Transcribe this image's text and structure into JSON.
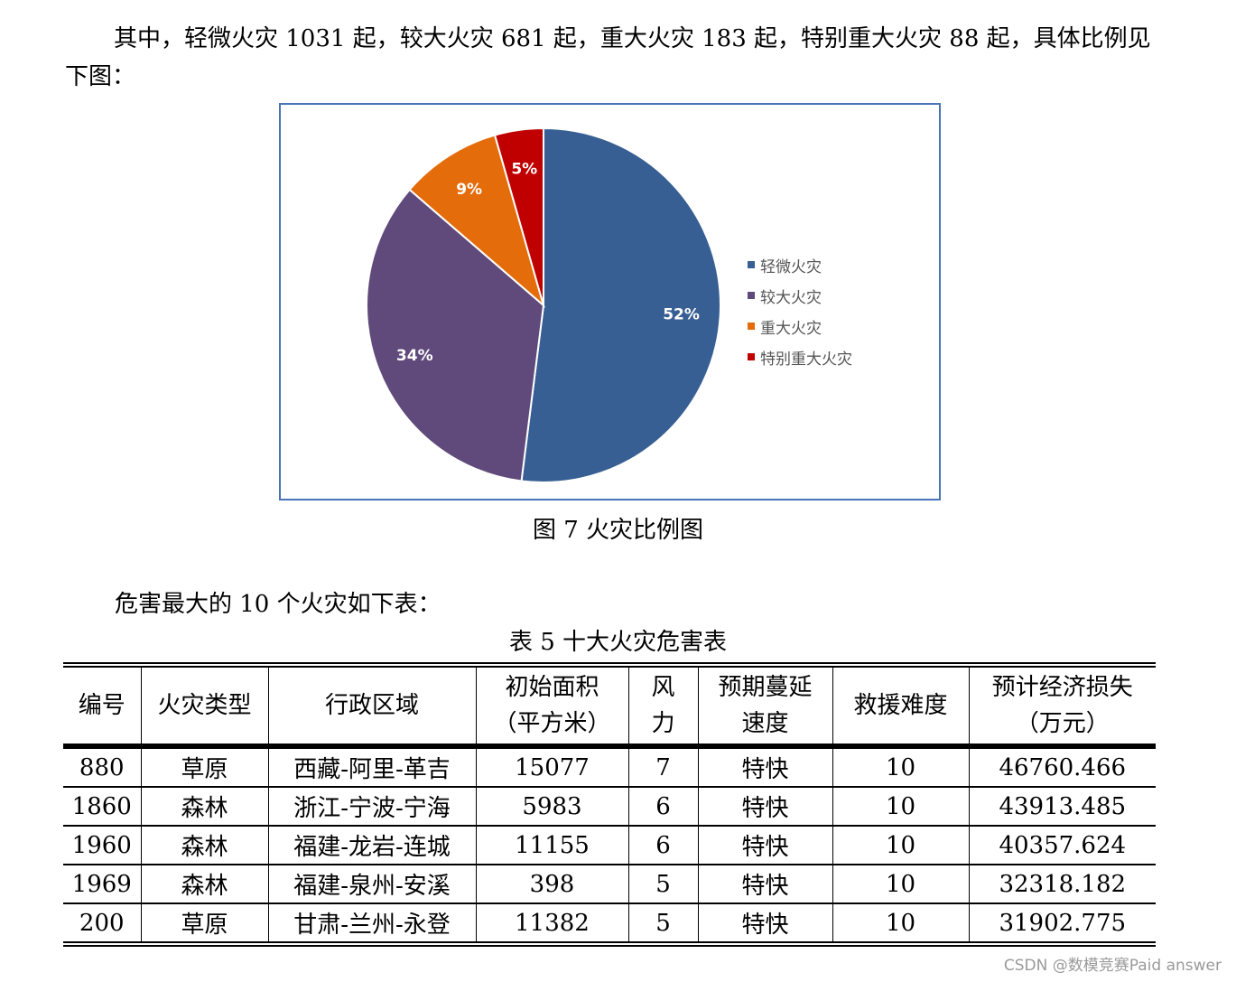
{
  "intro_text": "其中，轻微火灾 1031 起，较大火灾 681 起，重大火灾 183 起，特别重大火灾 88 起，具体比例见下图：",
  "figure_caption": "图 7  火灾比例图",
  "table_intro": "危害最大的 10 个火灾如下表：",
  "table_caption": "表 5  十大火灾危害表",
  "chart_data": {
    "type": "pie",
    "title": "",
    "categories": [
      "轻微火灾",
      "较大火灾",
      "重大火灾",
      "特别重大火灾"
    ],
    "values": [
      1031,
      681,
      183,
      88
    ],
    "labels": [
      "52%",
      "34%",
      "9%",
      "5%"
    ],
    "colors": [
      "#375f93",
      "#604a7b",
      "#e46c0a",
      "#c00000"
    ],
    "legend": "right"
  },
  "table": {
    "headers": [
      "编号",
      "火灾类型",
      "行政区域",
      "初始面积\n（平方米）",
      "风\n力",
      "预期蔓延\n速度",
      "救援难度",
      "预计经济损失\n（万元）"
    ],
    "rows": [
      [
        "880",
        "草原",
        "西藏-阿里-革吉",
        "15077",
        "7",
        "特快",
        "10",
        "46760.466"
      ],
      [
        "1860",
        "森林",
        "浙江-宁波-宁海",
        "5983",
        "6",
        "特快",
        "10",
        "43913.485"
      ],
      [
        "1960",
        "森林",
        "福建-龙岩-连城",
        "11155",
        "6",
        "特快",
        "10",
        "40357.624"
      ],
      [
        "1969",
        "森林",
        "福建-泉州-安溪",
        "398",
        "5",
        "特快",
        "10",
        "32318.182"
      ],
      [
        "200",
        "草原",
        "甘肃-兰州-永登",
        "11382",
        "5",
        "特快",
        "10",
        "31902.775"
      ]
    ]
  },
  "watermark": "CSDN @数模竞赛Paid answer"
}
